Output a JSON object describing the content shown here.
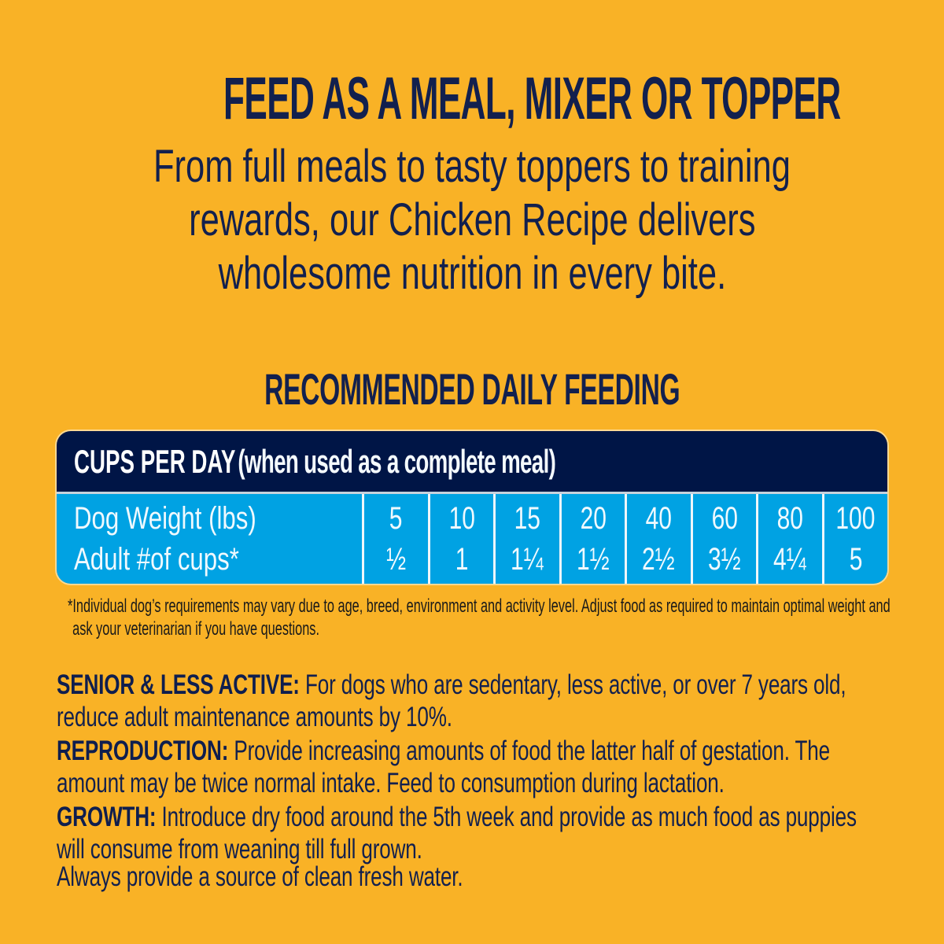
{
  "colors": {
    "background": "#F9B226",
    "navy": "#001546",
    "light_blue": "#00A2E3",
    "text_navy": "#12204E",
    "table_text": "#FFFFFF",
    "footnote_text": "#1A1A1A"
  },
  "header": {
    "title": "FEED AS A MEAL, MIXER OR TOPPER",
    "subtitle_lines": [
      "From full meals to tasty toppers to training",
      "rewards, our Chicken Recipe delivers",
      "wholesome nutrition in every bite."
    ]
  },
  "feeding": {
    "heading": "RECOMMENDED DAILY FEEDING",
    "table": {
      "title_bold": "CUPS PER DAY",
      "title_paren": "(when used as a complete meal)",
      "row_labels": [
        "Dog Weight (lbs)",
        "Adult #of cups*"
      ],
      "weights": [
        "5",
        "10",
        "15",
        "20",
        "40",
        "60",
        "80",
        "100"
      ],
      "cups": [
        "½",
        "1",
        "1¼",
        "1½",
        "2½",
        "3½",
        "4¼",
        "5"
      ]
    },
    "footnote": "*Individual dog’s requirements may vary due to age, breed, environment and activity level. Adjust food as required to maintain optimal weight and ask your veterinarian if you have questions."
  },
  "guidelines": [
    {
      "label": "SENIOR & LESS ACTIVE:",
      "text": "For dogs who are sedentary, less active, or over 7 years old, reduce adult maintenance amounts by 10%."
    },
    {
      "label": "REPRODUCTION:",
      "text": "Provide increasing amounts of food the latter half of gestation. The amount may be twice normal intake. Feed to consumption during lactation."
    },
    {
      "label": "GROWTH:",
      "text": "Introduce dry food around the 5th week and provide as much food as puppies will consume from weaning till full grown."
    }
  ],
  "water_note": "Always provide a source of clean fresh water."
}
